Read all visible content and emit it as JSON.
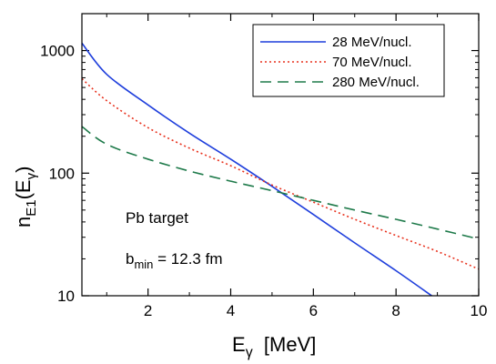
{
  "chart_data": {
    "type": "line",
    "xlabel": {
      "main": "E",
      "sub": "γ",
      "rest": "  [MeV]"
    },
    "ylabel": {
      "main": "n",
      "sub": "E1",
      "open": "(E",
      "sub2": "γ",
      "close": ")"
    },
    "xlim": [
      0.4,
      10
    ],
    "ylim": [
      10,
      2000
    ],
    "yscale": "log",
    "xticks": [
      2,
      4,
      6,
      8,
      10
    ],
    "yticks": [
      10,
      100,
      1000
    ],
    "legend_position": "top-right",
    "annotations": {
      "target": "Pb target",
      "bmin_main": "b",
      "bmin_sub": "min",
      "bmin_rest": " = 12.3 fm"
    },
    "series": [
      {
        "name": "28 MeV/nucl.",
        "color": "#1f3fdc",
        "dash": "solid",
        "x": [
          0.4,
          1,
          2,
          3,
          4,
          5,
          6,
          7,
          8,
          8.9
        ],
        "y": [
          1150,
          640,
          360,
          212,
          130,
          78,
          46,
          27,
          16,
          9.8
        ]
      },
      {
        "name": "70 MeV/nucl.",
        "color": "#e8321e",
        "dash": "dotted",
        "x": [
          0.4,
          1,
          2,
          3,
          4,
          5,
          6,
          7,
          8,
          9,
          10
        ],
        "y": [
          590,
          390,
          235,
          160,
          115,
          80,
          58,
          42,
          31,
          23,
          16.5
        ]
      },
      {
        "name": "280 MeV/nucl.",
        "color": "#1e7a4a",
        "dash": "dashed",
        "x": [
          0.4,
          1,
          2,
          3,
          4,
          5,
          6,
          7,
          8,
          9,
          10
        ],
        "y": [
          240,
          172,
          130,
          104,
          86,
          72,
          60,
          50,
          42,
          35,
          29
        ]
      }
    ]
  }
}
